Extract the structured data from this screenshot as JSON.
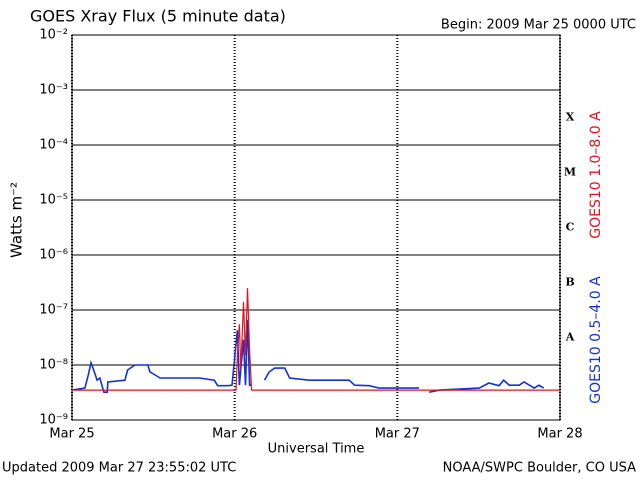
{
  "chart_data": {
    "type": "line",
    "title": "GOES Xray Flux (5 minute data)",
    "subtitle": "Begin:  2009 Mar 25 0000 UTC",
    "y_label": "Watts m⁻²",
    "x_label": "Universal Time",
    "footer_left": "Updated 2009 Mar 27 23:55:02 UTC",
    "footer_right": "NOAA/SWPC Boulder, CO USA",
    "class_labels": [
      "X",
      "M",
      "C",
      "B",
      "A"
    ],
    "log_y": true,
    "grid": true,
    "ylim": [
      1e-09,
      0.01
    ],
    "yticks": [
      {
        "value": 0.01,
        "label": "10⁻²"
      },
      {
        "value": 0.001,
        "label": "10⁻³"
      },
      {
        "value": 0.0001,
        "label": "10⁻⁴"
      },
      {
        "value": 1e-05,
        "label": "10⁻⁵"
      },
      {
        "value": 1e-06,
        "label": "10⁻⁶"
      },
      {
        "value": 1e-07,
        "label": "10⁻⁷"
      },
      {
        "value": 1e-08,
        "label": "10⁻⁸"
      },
      {
        "value": 1e-09,
        "label": "10⁻⁹"
      }
    ],
    "xlim": [
      0,
      72
    ],
    "xticks": [
      {
        "value": 0,
        "label": "Mar 25"
      },
      {
        "value": 24,
        "label": "Mar 26"
      },
      {
        "value": 48,
        "label": "Mar 27"
      },
      {
        "value": 72,
        "label": "Mar 28"
      }
    ],
    "series": [
      {
        "name": "GOES10 1.0–8.0 A",
        "color": "#e0141e",
        "x": [
          0,
          23.6,
          24.2,
          24.4,
          24.7,
          24.9,
          25.3,
          25.6,
          25.9,
          26.2,
          26.5,
          72
        ],
        "values": [
          3.5e-09,
          3.5e-09,
          3.5e-09,
          1.5e-08,
          5.5e-08,
          8e-09,
          1.4e-07,
          1.5e-08,
          2.5e-07,
          1.8e-08,
          3.5e-09,
          3.5e-09
        ]
      },
      {
        "name": "GOES10 0.5–4.0 A",
        "color": "#1432d2",
        "x": [
          0,
          1.9,
          2.4,
          2.8,
          3.2,
          3.7,
          4.1,
          4.7,
          5.2,
          5.3,
          7.8,
          8.2,
          9.3,
          11.2,
          11.5,
          13.0,
          18.8,
          21.0,
          21.5,
          23.0,
          23.6,
          24.4,
          24.7,
          25.3,
          25.6,
          25.9,
          26.2,
          26.5,
          27,
          28.4,
          29.1,
          29.9,
          31.4,
          32.1,
          35.0,
          40.9,
          41.7,
          43.9,
          45.3,
          48.0,
          51.2,
          52.0,
          52.7,
          54.2,
          60.1,
          61.5,
          63.0,
          63.7,
          64.5,
          66.0,
          66.7,
          68.2,
          68.9,
          69.6
        ],
        "values": [
          3.5e-09,
          3.8e-09,
          6.6e-09,
          1.1e-08,
          8.1e-09,
          5.3e-09,
          5.8e-09,
          3.2e-09,
          3.2e-09,
          4.9e-09,
          5.3e-09,
          8.1e-09,
          1e-08,
          1e-08,
          7.5e-09,
          5.8e-09,
          5.8e-09,
          5.3e-09,
          4.2e-09,
          4.2e-09,
          4.3e-09,
          4.3e-08,
          4.3e-09,
          2.9e-08,
          4.3e-09,
          6.6e-08,
          4.3e-09,
          4.3e-09,
          null,
          5.3e-09,
          7.5e-09,
          8.8e-09,
          8.8e-09,
          5.8e-09,
          5.3e-09,
          5.3e-09,
          4.3e-09,
          4.2e-09,
          3.8e-09,
          3.8e-09,
          3.8e-09,
          null,
          3.2e-09,
          3.5e-09,
          3.8e-09,
          4.7e-09,
          4.2e-09,
          5.3e-09,
          4.3e-09,
          4.3e-09,
          4.9e-09,
          3.8e-09,
          4.3e-09,
          3.8e-09
        ]
      }
    ]
  }
}
